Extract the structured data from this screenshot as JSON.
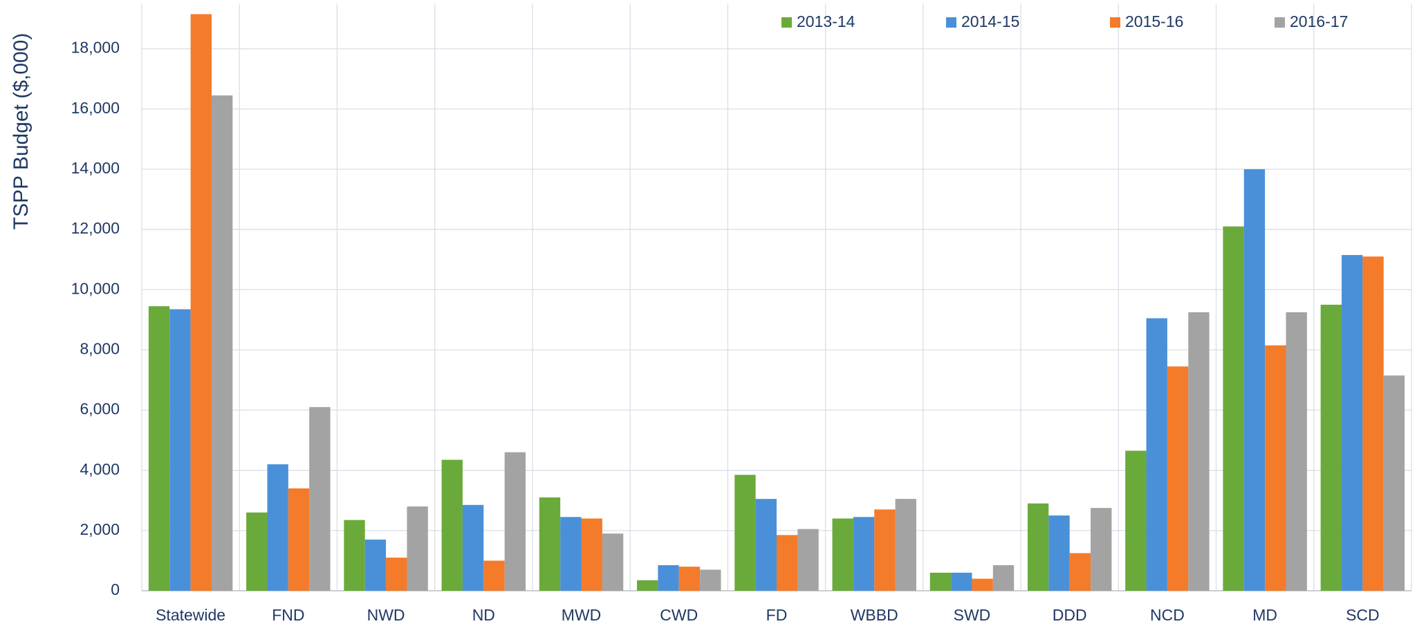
{
  "chart_data": {
    "type": "bar",
    "y_label": "TSPP Budget ($,000)",
    "categories": [
      "Statewide",
      "FND",
      "NWD",
      "ND",
      "MWD",
      "CWD",
      "FD",
      "WBBD",
      "SWD",
      "DDD",
      "NCD",
      "MD",
      "SCD"
    ],
    "series": [
      {
        "name": "2013-14",
        "color": "#6aaa3a",
        "values": [
          9450,
          2600,
          2350,
          4350,
          3100,
          350,
          3850,
          2400,
          600,
          2900,
          4650,
          12100,
          9500
        ]
      },
      {
        "name": "2014-15",
        "color": "#4a90d9",
        "values": [
          9350,
          4200,
          1700,
          2850,
          2450,
          850,
          3050,
          2450,
          600,
          2500,
          9050,
          14000,
          11150
        ]
      },
      {
        "name": "2015-16",
        "color": "#f47b2a",
        "values": [
          19150,
          3400,
          1100,
          1000,
          2400,
          800,
          1850,
          2700,
          400,
          1250,
          7450,
          8150,
          11100
        ]
      },
      {
        "name": "2016-17",
        "color": "#a3a3a3",
        "values": [
          16450,
          6100,
          2800,
          4600,
          1900,
          700,
          2050,
          3050,
          850,
          2750,
          9250,
          9250,
          7150
        ]
      }
    ],
    "ylim": [
      0,
      19500
    ],
    "yticks": [
      0,
      {
        "value": 2000,
        "label": "2,000"
      },
      {
        "value": 4000,
        "label": "4,000"
      },
      {
        "value": 6000,
        "label": "6,000"
      },
      {
        "value": 8000,
        "label": "8,000"
      },
      {
        "value": 10000,
        "label": "10,000"
      },
      {
        "value": 12000,
        "label": "12,000"
      },
      {
        "value": 14000,
        "label": "14,000"
      },
      {
        "value": 16000,
        "label": "16,000"
      },
      {
        "value": 18000,
        "label": "18,000"
      }
    ],
    "grid": true,
    "legend": "top"
  }
}
